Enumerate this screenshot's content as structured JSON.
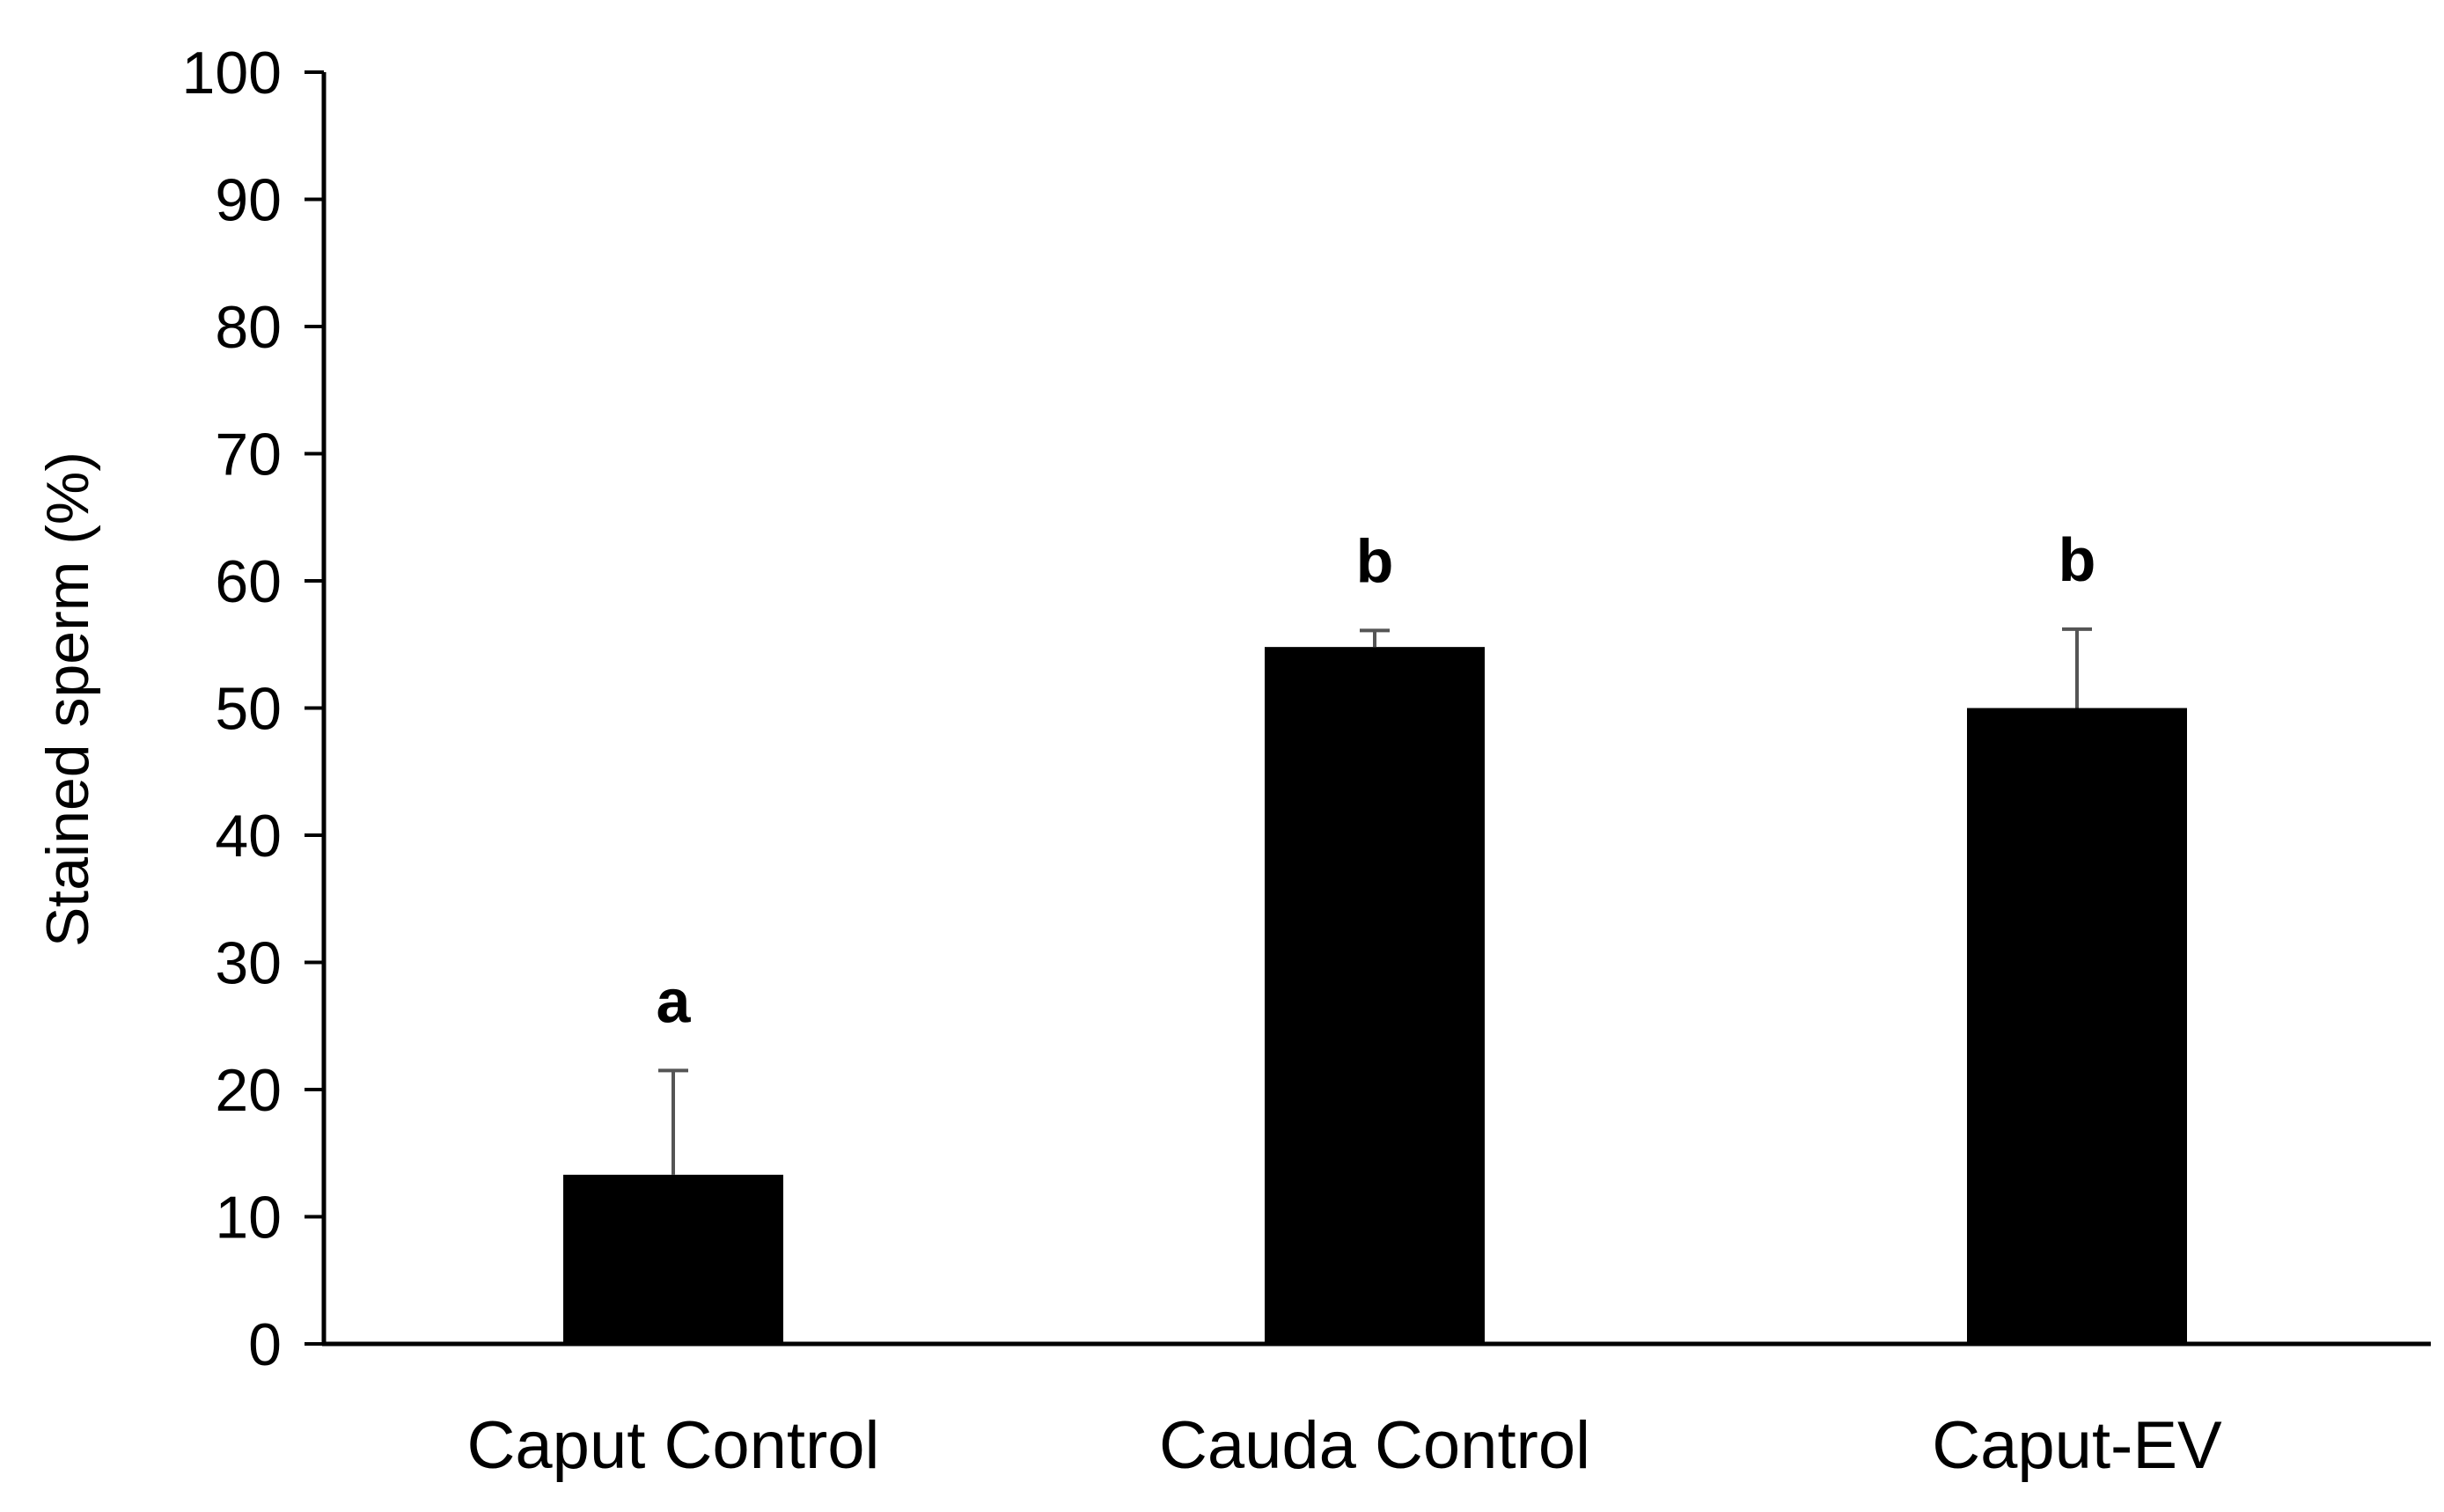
{
  "chart_data": {
    "type": "bar",
    "title": "",
    "xlabel": "",
    "ylabel": "Stained sperm (%)",
    "ylim": [
      0,
      100
    ],
    "yticks": [
      0,
      10,
      20,
      30,
      40,
      50,
      60,
      70,
      80,
      90,
      100
    ],
    "categories": [
      "Caput Control",
      "Cauda Control",
      "Caput-EV"
    ],
    "values": [
      13.3,
      54.8,
      50.0
    ],
    "error_plus": [
      8.2,
      1.3,
      6.2
    ],
    "significance_labels": [
      "a",
      "b",
      "b"
    ],
    "grid": false,
    "legend": "none",
    "bar_color": "#000000",
    "error_bar_color": "#555555"
  }
}
